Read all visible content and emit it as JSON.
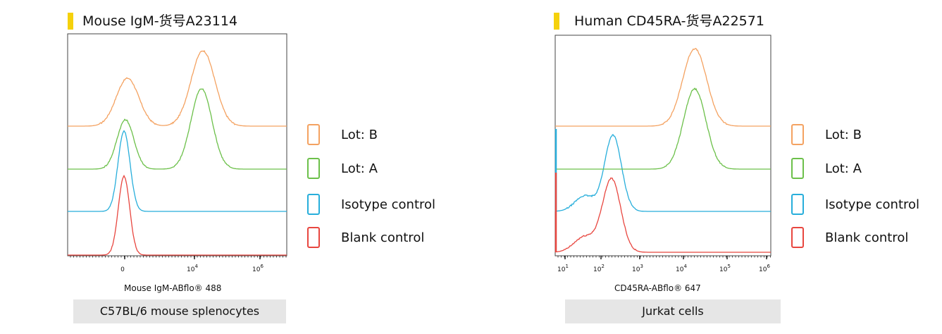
{
  "panels": [
    {
      "title": "Mouse IgM-货号A23114",
      "axis_label": "Mouse IgM-ABflo® 488",
      "caption": "C57BL/6 mouse splenocytes"
    },
    {
      "title": "Human CD45RA-货号A22571",
      "axis_label": "CD45RA-ABflo® 647",
      "caption": "Jurkat cells"
    }
  ],
  "legend": [
    {
      "label": "Lot: B",
      "color": "#f4a261"
    },
    {
      "label": "Lot: A",
      "color": "#6cc04a"
    },
    {
      "label": "Isotype control",
      "color": "#27aedb"
    },
    {
      "label": "Blank control",
      "color": "#e8463f"
    }
  ],
  "chart_data": [
    {
      "type": "area",
      "title": "Mouse IgM-货号A23114",
      "xlabel": "Mouse IgM-ABflo® 488",
      "ylabel": "",
      "x_scale": "biexponential",
      "x_tick_labels": [
        "0",
        "10^4",
        "10^6"
      ],
      "grid": false,
      "legend_position": "right",
      "series": [
        {
          "name": "Lot: B",
          "color": "#f4a261",
          "peaks": [
            {
              "x": "0",
              "relative_height": 0.65
            },
            {
              "x": "10^4",
              "relative_height": 1.0
            }
          ]
        },
        {
          "name": "Lot: A",
          "color": "#6cc04a",
          "peaks": [
            {
              "x": "0",
              "relative_height": 0.7
            },
            {
              "x": "10^4",
              "relative_height": 1.0
            }
          ]
        },
        {
          "name": "Isotype control",
          "color": "#27aedb",
          "peaks": [
            {
              "x": "0",
              "relative_height": 1.0
            }
          ]
        },
        {
          "name": "Blank control",
          "color": "#e8463f",
          "peaks": [
            {
              "x": "0",
              "relative_height": 1.0
            }
          ]
        }
      ]
    },
    {
      "type": "area",
      "title": "Human CD45RA-货号A22571",
      "xlabel": "CD45RA-ABflo® 647",
      "ylabel": "",
      "x_scale": "log",
      "x_tick_labels": [
        "10^1",
        "10^2",
        "10^3",
        "10^4",
        "10^5",
        "10^6"
      ],
      "xlim": [
        10,
        1000000
      ],
      "grid": false,
      "legend_position": "right",
      "series": [
        {
          "name": "Lot: B",
          "color": "#f4a261",
          "peaks": [
            {
              "x": 20000,
              "relative_height": 1.0
            }
          ]
        },
        {
          "name": "Lot: A",
          "color": "#6cc04a",
          "peaks": [
            {
              "x": 20000,
              "relative_height": 1.0
            }
          ]
        },
        {
          "name": "Isotype control",
          "color": "#27aedb",
          "peaks": [
            {
              "x": 200,
              "relative_height": 1.0
            }
          ]
        },
        {
          "name": "Blank control",
          "color": "#e8463f",
          "peaks": [
            {
              "x": 200,
              "relative_height": 1.0
            }
          ]
        }
      ]
    }
  ]
}
